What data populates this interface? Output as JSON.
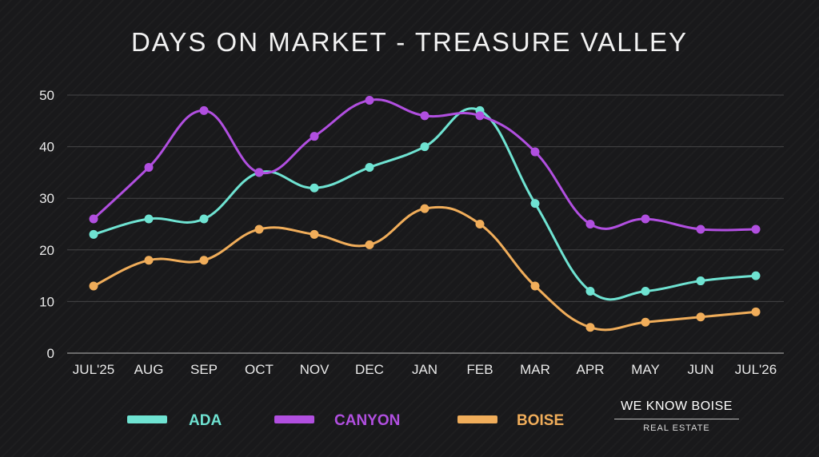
{
  "chart_data": {
    "type": "line",
    "title": "DAYS ON MARKET - TREASURE VALLEY",
    "xlabel": "",
    "ylabel": "",
    "categories": [
      "JUL'25",
      "AUG",
      "SEP",
      "OCT",
      "NOV",
      "DEC",
      "JAN",
      "FEB",
      "MAR",
      "APR",
      "MAY",
      "JUN",
      "JUL'26"
    ],
    "ylim": [
      0,
      50
    ],
    "yticks": [
      "0",
      "10",
      "20",
      "30",
      "40",
      "50"
    ],
    "grid": true,
    "legend_position": "bottom",
    "series": [
      {
        "name": "ADA",
        "color": "#6fe3d2",
        "values": [
          23,
          26,
          26,
          35,
          32,
          36,
          40,
          47,
          29,
          12,
          12,
          14,
          15
        ]
      },
      {
        "name": "CANYON",
        "color": "#b14fe0",
        "values": [
          26,
          36,
          47,
          35,
          42,
          49,
          46,
          46,
          39,
          25,
          26,
          24,
          24
        ]
      },
      {
        "name": "BOISE",
        "color": "#f0ad5a",
        "values": [
          13,
          18,
          18,
          24,
          23,
          21,
          28,
          25,
          13,
          5,
          6,
          7,
          8
        ]
      }
    ]
  },
  "branding": {
    "logo_main": "WE KNOW BOISE",
    "logo_sub": "REAL ESTATE"
  }
}
